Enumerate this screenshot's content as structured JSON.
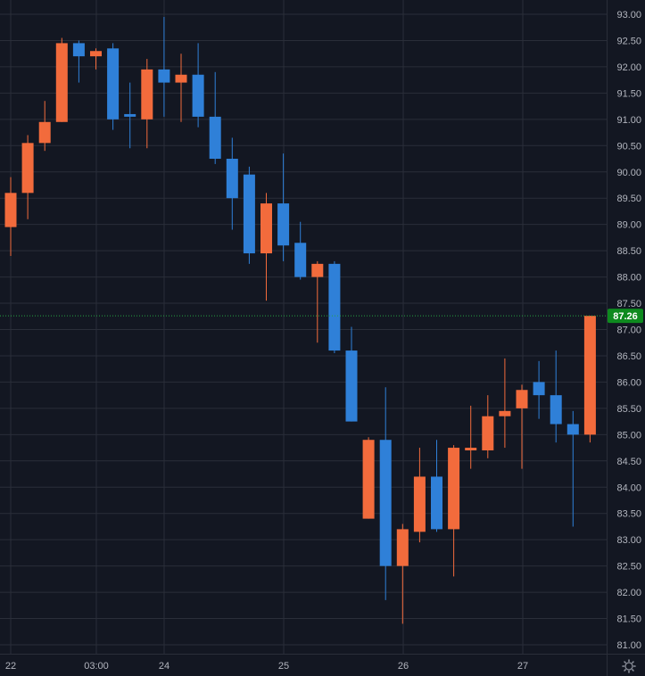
{
  "chart_data": {
    "type": "candlestick",
    "x_tick_labels": [
      "22",
      "03:00",
      "24",
      "25",
      "26",
      "27"
    ],
    "y_tick_labels": [
      "93.00",
      "92.50",
      "92.00",
      "91.50",
      "91.00",
      "90.50",
      "90.00",
      "89.50",
      "89.00",
      "88.50",
      "88.00",
      "87.50",
      "87.00",
      "86.50",
      "86.00",
      "85.50",
      "85.00",
      "84.50",
      "84.00",
      "83.50",
      "83.00",
      "82.50",
      "82.00",
      "81.50",
      "81.00"
    ],
    "ylim": [
      80.85,
      93.12
    ],
    "grid": true,
    "last_price": "87.26",
    "last_price_value": 87.26,
    "colors": {
      "background": "#131722",
      "grid": "#2a2e39",
      "up": "#f26b3c",
      "down": "#2f80d8",
      "last_price_line": "#26a641",
      "last_price_tag": "#0e8a1f",
      "axis_text": "#b2b5be"
    },
    "candles": [
      {
        "open": 88.95,
        "high": 89.9,
        "low": 88.4,
        "close": 89.6
      },
      {
        "open": 89.6,
        "high": 90.7,
        "low": 89.1,
        "close": 90.55
      },
      {
        "open": 90.55,
        "high": 91.35,
        "low": 90.4,
        "close": 90.95
      },
      {
        "open": 90.95,
        "high": 92.55,
        "low": 90.95,
        "close": 92.45
      },
      {
        "open": 92.45,
        "high": 92.5,
        "low": 91.7,
        "close": 92.2
      },
      {
        "open": 92.2,
        "high": 92.35,
        "low": 91.95,
        "close": 92.3
      },
      {
        "open": 92.35,
        "high": 92.45,
        "low": 90.8,
        "close": 91.0
      },
      {
        "open": 91.1,
        "high": 91.7,
        "low": 90.45,
        "close": 91.05
      },
      {
        "open": 91.0,
        "high": 92.15,
        "low": 90.45,
        "close": 91.95
      },
      {
        "open": 91.95,
        "high": 92.95,
        "low": 91.05,
        "close": 91.7
      },
      {
        "open": 91.7,
        "high": 92.25,
        "low": 90.95,
        "close": 91.85
      },
      {
        "open": 91.85,
        "high": 92.45,
        "low": 90.85,
        "close": 91.05
      },
      {
        "open": 91.05,
        "high": 91.9,
        "low": 90.15,
        "close": 90.25
      },
      {
        "open": 90.25,
        "high": 90.65,
        "low": 88.9,
        "close": 89.5
      },
      {
        "open": 89.95,
        "high": 90.1,
        "low": 88.25,
        "close": 88.45
      },
      {
        "open": 88.45,
        "high": 89.6,
        "low": 87.55,
        "close": 89.4
      },
      {
        "open": 89.4,
        "high": 90.35,
        "low": 88.3,
        "close": 88.6
      },
      {
        "open": 88.65,
        "high": 89.05,
        "low": 87.95,
        "close": 88.0
      },
      {
        "open": 88.0,
        "high": 88.3,
        "low": 86.75,
        "close": 88.25
      },
      {
        "open": 88.25,
        "high": 88.3,
        "low": 86.55,
        "close": 86.6
      },
      {
        "open": 86.6,
        "high": 87.05,
        "low": 85.25,
        "close": 85.25
      },
      {
        "open": 83.4,
        "high": 84.95,
        "low": 83.4,
        "close": 84.9
      },
      {
        "open": 84.9,
        "high": 85.9,
        "low": 81.85,
        "close": 82.5
      },
      {
        "open": 82.5,
        "high": 83.3,
        "low": 81.4,
        "close": 83.2
      },
      {
        "open": 83.15,
        "high": 84.75,
        "low": 82.95,
        "close": 84.2
      },
      {
        "open": 84.2,
        "high": 84.9,
        "low": 83.15,
        "close": 83.2
      },
      {
        "open": 83.2,
        "high": 84.8,
        "low": 82.3,
        "close": 84.75
      },
      {
        "open": 84.7,
        "high": 85.55,
        "low": 84.35,
        "close": 84.75
      },
      {
        "open": 84.7,
        "high": 85.75,
        "low": 84.55,
        "close": 85.35
      },
      {
        "open": 85.35,
        "high": 86.45,
        "low": 84.75,
        "close": 85.45
      },
      {
        "open": 85.5,
        "high": 85.95,
        "low": 84.35,
        "close": 85.85
      },
      {
        "open": 86.0,
        "high": 86.4,
        "low": 85.3,
        "close": 85.75
      },
      {
        "open": 85.75,
        "high": 86.6,
        "low": 84.85,
        "close": 85.2
      },
      {
        "open": 85.2,
        "high": 85.45,
        "low": 83.25,
        "close": 85.0
      },
      {
        "open": 85.0,
        "high": 87.26,
        "low": 84.85,
        "close": 87.26
      }
    ]
  },
  "icons": {
    "settings": "gear-icon"
  }
}
